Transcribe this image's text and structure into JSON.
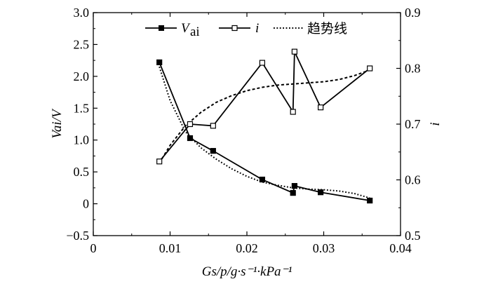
{
  "chart_data": {
    "type": "line",
    "xlabel": "Gs/p/g·s⁻¹·kPa⁻¹",
    "ylabel_left": "Vai/V",
    "ylabel_right": "i",
    "xlim": [
      0,
      0.04
    ],
    "ylim_left": [
      -0.5,
      3.0
    ],
    "ylim_right": [
      0.5,
      0.9
    ],
    "x_ticks": [
      "0",
      "0.01",
      "0.02",
      "0.03",
      "0.04"
    ],
    "y_left_ticks": [
      "−0.5",
      "0",
      "0.5",
      "1.0",
      "1.5",
      "2.0",
      "2.5",
      "3.0"
    ],
    "y_right_ticks": [
      "0.5",
      "0.6",
      "0.7",
      "0.8",
      "0.9"
    ],
    "legend_position": "top",
    "series": [
      {
        "name": "Vai",
        "axis": "left",
        "marker": "filled-square",
        "line": "solid",
        "x": [
          0.0086,
          0.0126,
          0.0156,
          0.022,
          0.026,
          0.0262,
          0.0296,
          0.036
        ],
        "y": [
          2.22,
          1.03,
          0.83,
          0.38,
          0.17,
          0.28,
          0.18,
          0.05
        ]
      },
      {
        "name": "i",
        "axis": "right",
        "marker": "open-square",
        "line": "solid",
        "x": [
          0.0086,
          0.0126,
          0.0156,
          0.022,
          0.026,
          0.0262,
          0.0296,
          0.036
        ],
        "y": [
          0.633,
          0.7,
          0.697,
          0.81,
          0.722,
          0.83,
          0.73,
          0.8
        ]
      },
      {
        "name": "趋势线",
        "axis": "left",
        "line": "dotted",
        "x": [
          0.0086,
          0.01,
          0.012,
          0.014,
          0.016,
          0.018,
          0.02,
          0.022,
          0.024,
          0.026,
          0.028,
          0.03,
          0.032,
          0.034,
          0.036
        ],
        "y": [
          2.15,
          1.62,
          1.13,
          0.88,
          0.7,
          0.55,
          0.43,
          0.34,
          0.29,
          0.25,
          0.23,
          0.22,
          0.2,
          0.16,
          0.09
        ]
      },
      {
        "name": "i-trend",
        "axis": "right",
        "line": "dashed",
        "x": [
          0.0086,
          0.01,
          0.012,
          0.014,
          0.016,
          0.018,
          0.02,
          0.022,
          0.024,
          0.026,
          0.028,
          0.03,
          0.032,
          0.034,
          0.036
        ],
        "y": [
          0.63,
          0.662,
          0.697,
          0.721,
          0.739,
          0.751,
          0.76,
          0.766,
          0.77,
          0.772,
          0.774,
          0.776,
          0.78,
          0.787,
          0.797
        ]
      }
    ],
    "legend": [
      {
        "label_main": "V",
        "label_sub": "ai",
        "style": "solid-filled-square"
      },
      {
        "label_main": "i",
        "style": "solid-open-square"
      },
      {
        "label_main": "趋势线",
        "style": "dotted"
      }
    ]
  }
}
